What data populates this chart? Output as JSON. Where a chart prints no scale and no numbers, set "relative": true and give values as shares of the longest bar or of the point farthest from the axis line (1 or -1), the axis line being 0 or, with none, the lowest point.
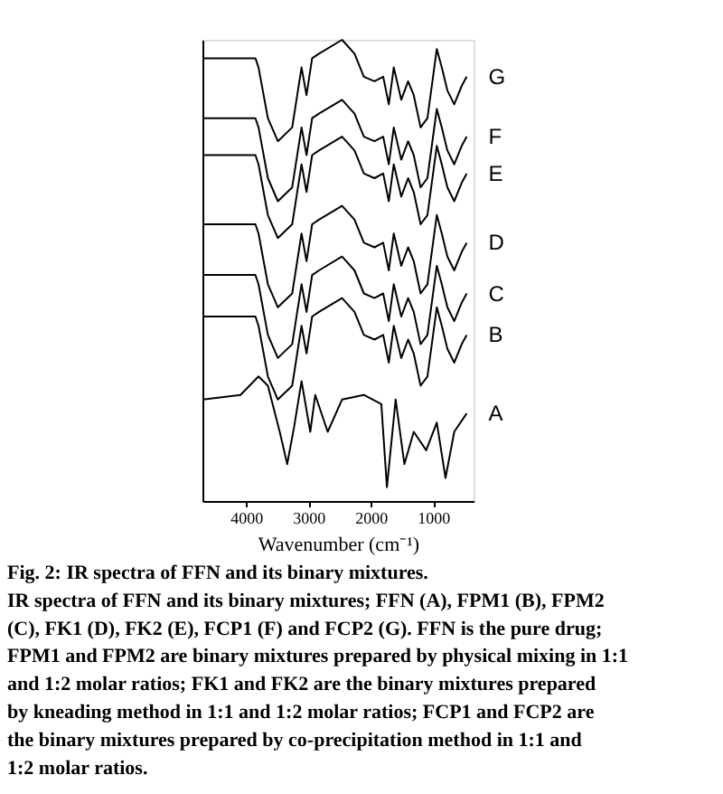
{
  "chart_data": {
    "type": "line",
    "relative": true,
    "title": "Fig. 2: IR spectra of FFN and its binary mixtures.",
    "xlabel": "Wavenumber (cm⁻¹)",
    "xlim": [
      4700,
      350
    ],
    "xticks": [
      4000,
      3000,
      2000,
      1000
    ],
    "grid": false,
    "legend": false,
    "tick_labels": "x",
    "marker": "none",
    "line_style": "solid",
    "x": [
      4690,
      4200,
      3850,
      3800,
      3650,
      3490,
      3260,
      3110,
      3030,
      2940,
      2830,
      2460,
      2260,
      2110,
      1940,
      1800,
      1710,
      1630,
      1510,
      1400,
      1310,
      1200,
      1090,
      940,
      860,
      770,
      660,
      540,
      460
    ],
    "series": [
      {
        "name": "G",
        "color": "#000000",
        "values": [
          0.96,
          0.96,
          0.96,
          0.94,
          0.83,
          0.78,
          0.81,
          0.94,
          0.88,
          0.96,
          0.97,
          1.0,
          0.97,
          0.92,
          0.91,
          0.92,
          0.86,
          0.94,
          0.87,
          0.91,
          0.88,
          0.81,
          0.83,
          0.98,
          0.94,
          0.89,
          0.86,
          0.9,
          0.92
        ]
      },
      {
        "name": "F",
        "color": "#000000",
        "values": [
          0.83,
          0.83,
          0.83,
          0.81,
          0.7,
          0.65,
          0.68,
          0.81,
          0.75,
          0.83,
          0.84,
          0.87,
          0.84,
          0.79,
          0.78,
          0.79,
          0.73,
          0.81,
          0.74,
          0.78,
          0.75,
          0.68,
          0.7,
          0.85,
          0.81,
          0.76,
          0.73,
          0.77,
          0.79
        ]
      },
      {
        "name": "E",
        "color": "#000000",
        "values": [
          0.75,
          0.75,
          0.75,
          0.73,
          0.62,
          0.57,
          0.6,
          0.73,
          0.67,
          0.75,
          0.76,
          0.79,
          0.76,
          0.71,
          0.7,
          0.71,
          0.65,
          0.73,
          0.66,
          0.7,
          0.67,
          0.6,
          0.62,
          0.77,
          0.73,
          0.68,
          0.65,
          0.69,
          0.71
        ]
      },
      {
        "name": "D",
        "color": "#000000",
        "values": [
          0.6,
          0.6,
          0.6,
          0.58,
          0.47,
          0.42,
          0.45,
          0.58,
          0.52,
          0.6,
          0.61,
          0.64,
          0.61,
          0.56,
          0.55,
          0.56,
          0.5,
          0.58,
          0.51,
          0.55,
          0.52,
          0.45,
          0.47,
          0.62,
          0.58,
          0.53,
          0.5,
          0.54,
          0.56
        ]
      },
      {
        "name": "C",
        "color": "#000000",
        "values": [
          0.49,
          0.49,
          0.49,
          0.47,
          0.36,
          0.31,
          0.34,
          0.47,
          0.41,
          0.49,
          0.5,
          0.53,
          0.5,
          0.45,
          0.44,
          0.45,
          0.39,
          0.47,
          0.4,
          0.44,
          0.41,
          0.34,
          0.36,
          0.51,
          0.47,
          0.42,
          0.39,
          0.43,
          0.45
        ]
      },
      {
        "name": "B",
        "color": "#000000",
        "values": [
          0.4,
          0.4,
          0.4,
          0.38,
          0.27,
          0.22,
          0.25,
          0.38,
          0.32,
          0.4,
          0.41,
          0.44,
          0.41,
          0.36,
          0.35,
          0.36,
          0.3,
          0.38,
          0.31,
          0.35,
          0.32,
          0.25,
          0.27,
          0.42,
          0.38,
          0.33,
          0.3,
          0.34,
          0.36
        ]
      },
      {
        "name": "A",
        "color": "#000000",
        "x": [
          4690,
          4090,
          3800,
          3650,
          3460,
          3340,
          3230,
          3110,
          2970,
          2890,
          2690,
          2460,
          2110,
          1830,
          1740,
          1600,
          1460,
          1310,
          1110,
          940,
          800,
          660,
          460
        ],
        "values": [
          0.22,
          0.23,
          0.27,
          0.25,
          0.15,
          0.08,
          0.16,
          0.26,
          0.15,
          0.23,
          0.15,
          0.22,
          0.23,
          0.21,
          0.03,
          0.22,
          0.08,
          0.15,
          0.11,
          0.17,
          0.05,
          0.15,
          0.19
        ]
      }
    ],
    "annotations": [
      "IR spectra of FFN and its binary mixtures; FFN (A), FPM1 (B), FPM2 (C), FK1 (D), FK2 (E), FCP1 (F) and FCP2 (G). FFN is the pure drug; FPM1 and FPM2 are binary mixtures prepared by physical mixing in 1:1 and 1:2 molar ratios; FK1 and FK2 are the binary mixtures prepared by kneading method in 1:1 and 1:2 molar ratios; FCP1 and FCP2 are the binary mixtures prepared by co-precipitation method in 1:1 and 1:2 molar ratios."
    ]
  }
}
